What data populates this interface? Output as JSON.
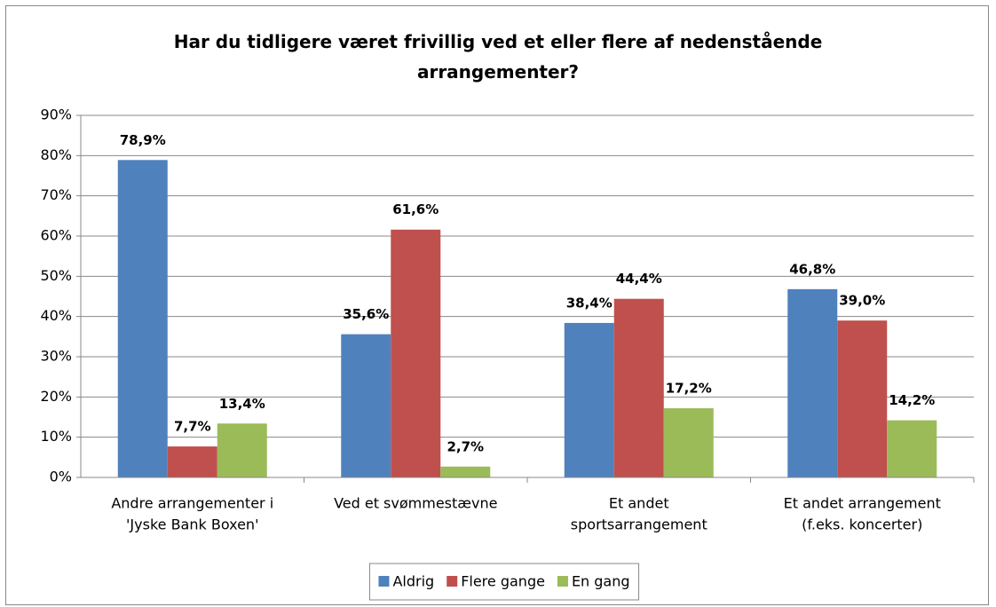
{
  "chart_data": {
    "type": "bar",
    "title": "Har du tidligere været frivillig ved et eller flere af nedenstående arrangementer?",
    "categories": [
      [
        "Andre arrangementer i",
        "'Jyske Bank Boxen'"
      ],
      [
        "Ved et svømmestævne"
      ],
      [
        "Et andet",
        "sportsarrangement"
      ],
      [
        "Et andet arrangement",
        "(f.eks. koncerter)"
      ]
    ],
    "series": [
      {
        "name": "Aldrig",
        "color": "#4f81bd",
        "values": [
          78.9,
          35.6,
          38.4,
          46.8
        ],
        "value_labels": [
          "78,9%",
          "35,6%",
          "38,4%",
          "46,8%"
        ]
      },
      {
        "name": "Flere gange",
        "color": "#c0504d",
        "values": [
          7.7,
          61.6,
          44.4,
          39.0
        ],
        "value_labels": [
          "7,7%",
          "61,6%",
          "44,4%",
          "39,0%"
        ]
      },
      {
        "name": "En gang",
        "color": "#9bbb59",
        "values": [
          13.4,
          2.7,
          17.2,
          14.2
        ],
        "value_labels": [
          "13,4%",
          "2,7%",
          "17,2%",
          "14,2%"
        ]
      }
    ],
    "ylim": [
      0,
      90
    ],
    "yticks": [
      {
        "value": 0,
        "label": "0%"
      },
      {
        "value": 10,
        "label": "10%"
      },
      {
        "value": 20,
        "label": "20%"
      },
      {
        "value": 30,
        "label": "30%"
      },
      {
        "value": 40,
        "label": "40%"
      },
      {
        "value": 50,
        "label": "50%"
      },
      {
        "value": 60,
        "label": "60%"
      },
      {
        "value": 70,
        "label": "70%"
      },
      {
        "value": 80,
        "label": "80%"
      },
      {
        "value": 90,
        "label": "90%"
      }
    ],
    "grid": true,
    "legend": "bottom"
  }
}
